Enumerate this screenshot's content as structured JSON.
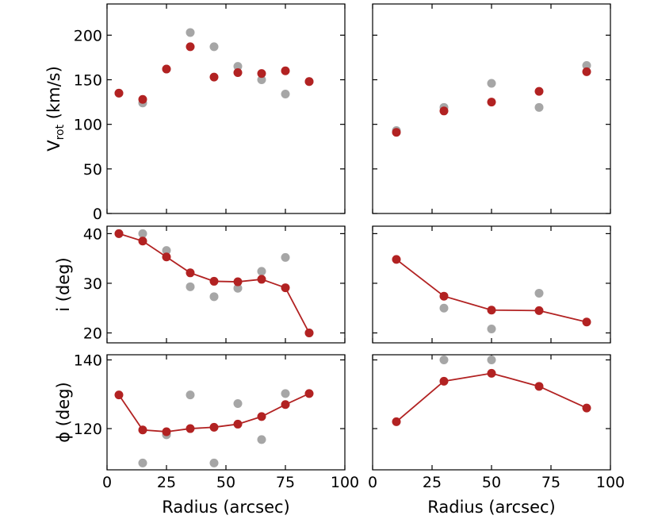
{
  "colors": {
    "model": "#b22222",
    "data": "#a6a6a6"
  },
  "chart_data": [
    {
      "type": "scatter",
      "id": "vrot-left",
      "ylabel": "V",
      "ylabel_sub": "rot",
      "ylabel_unit": " (km/s)",
      "xlim": [
        0,
        100
      ],
      "ylim": [
        0,
        235
      ],
      "yticks": [
        0,
        50,
        100,
        150,
        200
      ],
      "xticks": [
        0,
        25,
        50,
        75,
        100
      ],
      "series": [
        {
          "name": "gray",
          "color": "#a6a6a6",
          "line": false,
          "x": [
            5,
            15,
            25,
            35,
            45,
            55,
            65,
            75,
            85
          ],
          "y": [
            135,
            124,
            162,
            203,
            187,
            165,
            150,
            134,
            148
          ]
        },
        {
          "name": "red",
          "color": "#b22222",
          "line": false,
          "x": [
            5,
            15,
            25,
            35,
            45,
            55,
            65,
            75,
            85
          ],
          "y": [
            135,
            128,
            162,
            187,
            153,
            158,
            157,
            160,
            148
          ]
        }
      ]
    },
    {
      "type": "scatter",
      "id": "vrot-right",
      "xlim": [
        0,
        100
      ],
      "ylim": [
        0,
        235
      ],
      "yticks": [
        0,
        50,
        100,
        150,
        200
      ],
      "xticks": [
        0,
        25,
        50,
        75,
        100
      ],
      "series": [
        {
          "name": "gray",
          "color": "#a6a6a6",
          "line": false,
          "x": [
            10,
            30,
            50,
            70,
            90
          ],
          "y": [
            93,
            119,
            146,
            119,
            166
          ]
        },
        {
          "name": "red",
          "color": "#b22222",
          "line": false,
          "x": [
            10,
            30,
            50,
            70,
            90
          ],
          "y": [
            91,
            115,
            125,
            137,
            159
          ]
        }
      ]
    },
    {
      "type": "line",
      "id": "incl-left",
      "ylabel": "i (deg)",
      "xlim": [
        0,
        100
      ],
      "ylim": [
        18,
        41.5
      ],
      "yticks": [
        20,
        30,
        40
      ],
      "xticks": [
        0,
        25,
        50,
        75,
        100
      ],
      "series": [
        {
          "name": "gray",
          "color": "#a6a6a6",
          "line": false,
          "x": [
            5,
            15,
            25,
            35,
            45,
            55,
            65,
            75,
            85
          ],
          "y": [
            40,
            40,
            36.6,
            29.3,
            27.3,
            29,
            32.4,
            35.2,
            20
          ]
        },
        {
          "name": "red",
          "color": "#b22222",
          "line": true,
          "x": [
            5,
            15,
            25,
            35,
            45,
            55,
            65,
            75,
            85
          ],
          "y": [
            40,
            38.5,
            35.3,
            32.1,
            30.4,
            30.3,
            30.8,
            29.1,
            20
          ]
        }
      ]
    },
    {
      "type": "line",
      "id": "incl-right",
      "xlim": [
        0,
        100
      ],
      "ylim": [
        18,
        41.5
      ],
      "yticks": [
        20,
        30,
        40
      ],
      "xticks": [
        0,
        25,
        50,
        75,
        100
      ],
      "series": [
        {
          "name": "gray",
          "color": "#a6a6a6",
          "line": false,
          "x": [
            30,
            50,
            70
          ],
          "y": [
            25,
            20.8,
            28
          ]
        },
        {
          "name": "red",
          "color": "#b22222",
          "line": true,
          "x": [
            10,
            30,
            50,
            70,
            90
          ],
          "y": [
            34.8,
            27.4,
            24.6,
            24.5,
            22.2
          ]
        }
      ]
    },
    {
      "type": "line",
      "id": "pa-left",
      "ylabel": "ϕ (deg)",
      "xlim": [
        0,
        100
      ],
      "ylim": [
        108,
        141.5
      ],
      "yticks": [
        120,
        140
      ],
      "xticks": [
        0,
        25,
        50,
        75,
        100
      ],
      "xlabel": "Radius (arcsec)",
      "xtick_labels": [
        "0",
        "25",
        "50",
        "75",
        "100"
      ],
      "series": [
        {
          "name": "gray",
          "color": "#a6a6a6",
          "line": false,
          "x": [
            15,
            25,
            35,
            45,
            55,
            65,
            75
          ],
          "y": [
            110,
            118.2,
            129.8,
            110,
            127.3,
            116.8,
            130.2
          ]
        },
        {
          "name": "red",
          "color": "#b22222",
          "line": true,
          "x": [
            5,
            15,
            25,
            35,
            45,
            55,
            65,
            75,
            85
          ],
          "y": [
            129.8,
            119.6,
            119.1,
            120,
            120.4,
            121.3,
            123.5,
            127,
            130.2
          ]
        }
      ]
    },
    {
      "type": "line",
      "id": "pa-right",
      "xlim": [
        0,
        100
      ],
      "ylim": [
        108,
        141.5
      ],
      "yticks": [
        120,
        140
      ],
      "xticks": [
        0,
        25,
        50,
        75,
        100
      ],
      "xlabel": "Radius (arcsec)",
      "xtick_labels": [
        "0",
        "25",
        "50",
        "75",
        "100"
      ],
      "series": [
        {
          "name": "gray",
          "color": "#a6a6a6",
          "line": false,
          "x": [
            30,
            50
          ],
          "y": [
            140,
            140
          ]
        },
        {
          "name": "red",
          "color": "#b22222",
          "line": true,
          "x": [
            10,
            30,
            50,
            70,
            90
          ],
          "y": [
            122,
            133.8,
            136.1,
            132.3,
            126
          ]
        }
      ]
    }
  ]
}
